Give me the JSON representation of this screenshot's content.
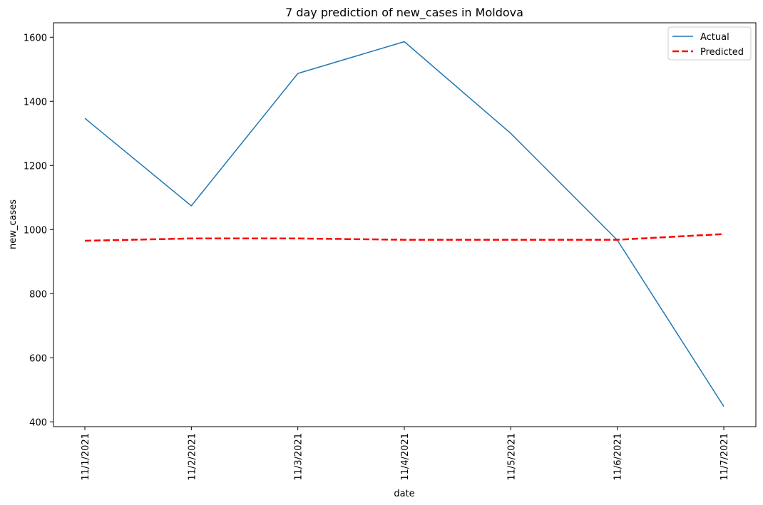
{
  "chart_data": {
    "type": "line",
    "title": "7 day prediction of new_cases in Moldova",
    "xlabel": "date",
    "ylabel": "new_cases",
    "categories": [
      "11/1/2021",
      "11/2/2021",
      "11/3/2021",
      "11/4/2021",
      "11/5/2021",
      "11/6/2021",
      "11/7/2021"
    ],
    "ylim": [
      385,
      1645
    ],
    "yticks": [
      400,
      600,
      800,
      1000,
      1200,
      1400,
      1600
    ],
    "grid": false,
    "legend_position": "top-right",
    "series": [
      {
        "name": "Actual",
        "color": "#1f77b4",
        "style": "solid",
        "values": [
          1347,
          1074,
          1487,
          1586,
          1300,
          967,
          448
        ]
      },
      {
        "name": "Predicted",
        "color": "#ff0000",
        "style": "dashed",
        "values": [
          965,
          972,
          972,
          968,
          968,
          968,
          986
        ]
      }
    ]
  }
}
